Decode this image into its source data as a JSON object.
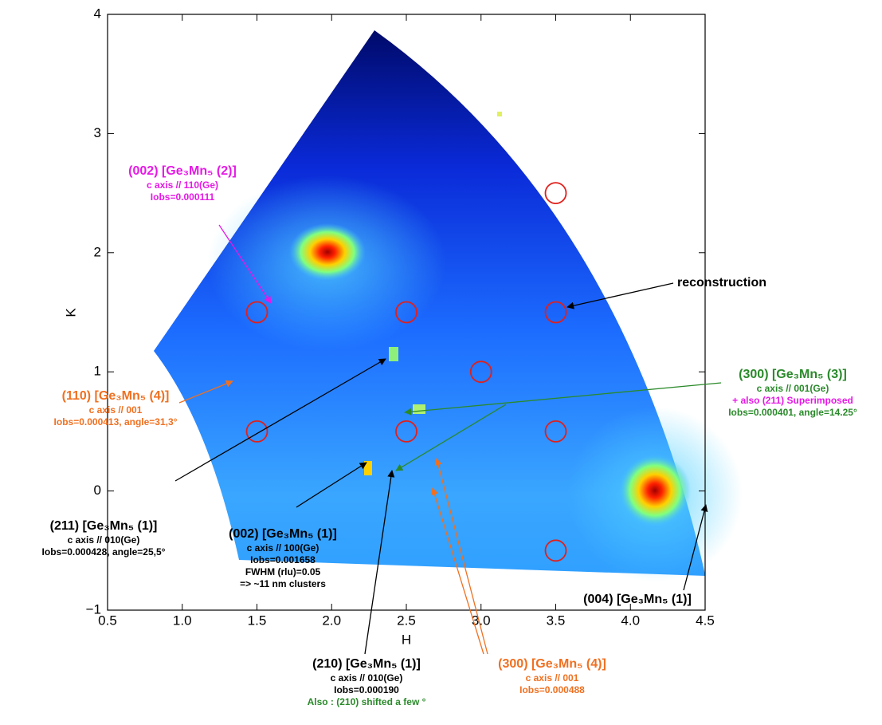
{
  "chart_data": {
    "type": "scatter",
    "xlabel": "H",
    "ylabel": "K",
    "xlim": [
      0.5,
      4.5
    ],
    "ylim": [
      -1,
      4
    ],
    "xticks": [
      0.5,
      {
        "value": 1,
        "label": "1.0"
      },
      1.5,
      {
        "value": 2,
        "label": "2.0"
      },
      2.5,
      {
        "value": 3,
        "label": "3.0"
      },
      3.5,
      {
        "value": 4,
        "label": "4.0"
      },
      4.5
    ],
    "yticks": [
      {
        "value": -1,
        "label": "−1"
      },
      0,
      1,
      2,
      3,
      4
    ],
    "x": [
      1.5,
      2.5,
      3.5,
      3.5,
      3.0,
      1.5,
      2.5,
      3.5,
      3.5
    ],
    "values": [
      1.5,
      1.5,
      1.5,
      2.5,
      1.0,
      0.5,
      0.5,
      0.5,
      -0.5
    ],
    "color": "#e0201c",
    "annotations": [
      {
        "lines": [
          "(002) [Ge₃Mn₅ (2)]",
          "c axis // 110(Ge)",
          "Iobs=0.000111"
        ],
        "colors": [
          "#e619e6",
          "#e619e6",
          "#e619e6"
        ]
      },
      {
        "lines": [
          "(110) [Ge₃Mn₅ (4)]",
          "c axis // 001",
          "Iobs=0.000413, angle=31,3°"
        ],
        "colors": [
          "#f07020",
          "#f07020",
          "#f07020"
        ]
      },
      {
        "lines": [
          "(211) [Ge₃Mn₅ (1)]",
          "c axis // 010(Ge)",
          "Iobs=0.000428, angle=25,5°"
        ],
        "colors": [
          "#000000",
          "#000000",
          "#000000"
        ]
      },
      {
        "lines": [
          "(002) [Ge₃Mn₅ (1)]",
          "c axis // 100(Ge)",
          "Iobs=0.001658",
          "FWHM (rlu)=0.05",
          "=> ~11 nm clusters"
        ],
        "colors": [
          "#000000",
          "#000000",
          "#000000",
          "#000000",
          "#000000"
        ]
      },
      {
        "lines": [
          "reconstruction"
        ],
        "colors": [
          "#000000"
        ]
      },
      {
        "lines": [
          "(300) [Ge₃Mn₅ (3)]",
          "c axis // 001(Ge)",
          "+ also (211) Superimposed",
          "Iobs=0.000401, angle=14.25°"
        ],
        "colors": [
          "#2a8a2a",
          "#2a8a2a",
          "#e619e6",
          "#2a8a2a"
        ]
      },
      {
        "lines": [
          "(004) [Ge₃Mn₅ (1)]"
        ],
        "colors": [
          "#000000"
        ]
      },
      {
        "lines": [
          "(210) [Ge₃Mn₅ (1)]",
          "c axis // 010(Ge)",
          "Iobs=0.000190",
          "Also : (210) shifted a few °"
        ],
        "colors": [
          "#000000",
          "#000000",
          "#000000",
          "#2a8a2a"
        ]
      },
      {
        "lines": [
          "(300) [Ge₃Mn₅ (4)]",
          "c axis // 001",
          "Iobs=0.000488"
        ],
        "colors": [
          "#f07020",
          "#f07020",
          "#f07020"
        ]
      }
    ]
  }
}
